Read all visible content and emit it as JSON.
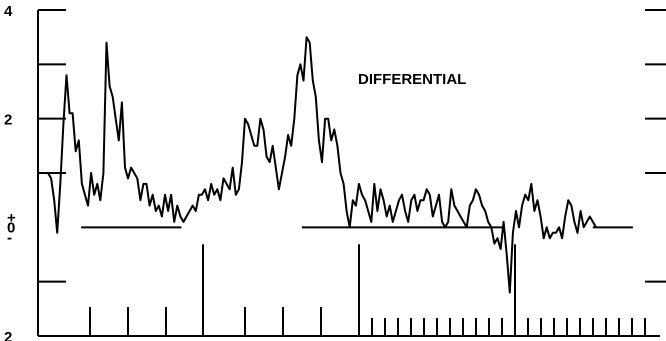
{
  "chart_data": {
    "type": "line",
    "title": "DIFFERENTIAL",
    "xlabel": "",
    "ylabel": "",
    "ylim": [
      -2,
      4
    ],
    "y_ticks": [
      {
        "value": 4,
        "label": "4"
      },
      {
        "value": 2,
        "label": "2"
      },
      {
        "value": 0,
        "label": "+\n0\n-"
      },
      {
        "value": -2,
        "label": "2"
      }
    ],
    "grid": false,
    "series": [
      {
        "values": [
          1.0,
          0.9,
          0.5,
          -0.1,
          0.8,
          1.9,
          2.8,
          2.1,
          2.1,
          1.4,
          1.6,
          0.8,
          0.6,
          0.4,
          1.0,
          0.6,
          0.8,
          0.5,
          1.0,
          3.4,
          2.6,
          2.4,
          2.0,
          1.6,
          2.3,
          1.1,
          0.9,
          1.1,
          1.0,
          0.9,
          0.5,
          0.8,
          0.8,
          0.4,
          0.6,
          0.3,
          0.4,
          0.2,
          0.6,
          0.3,
          0.6,
          0.1,
          0.4,
          0.2,
          0.1,
          0.2,
          0.3,
          0.4,
          0.3,
          0.6,
          0.6,
          0.7,
          0.5,
          0.8,
          0.6,
          0.7,
          0.5,
          0.9,
          0.8,
          0.7,
          1.1,
          0.6,
          0.7,
          1.2,
          2.0,
          1.9,
          1.7,
          1.5,
          1.5,
          2.0,
          1.8,
          1.3,
          1.2,
          1.5,
          1.1,
          0.7,
          1.0,
          1.3,
          1.7,
          1.5,
          2.0,
          2.8,
          3.0,
          2.7,
          3.5,
          3.4,
          2.7,
          2.4,
          1.6,
          1.2,
          2.0,
          2.0,
          1.6,
          1.8,
          1.5,
          1.0,
          0.8,
          0.3,
          0.0,
          0.5,
          0.4,
          0.8,
          0.6,
          0.5,
          0.3,
          0.1,
          0.8,
          0.3,
          0.7,
          0.5,
          0.2,
          0.4,
          0.1,
          0.3,
          0.5,
          0.6,
          0.3,
          0.1,
          0.5,
          0.6,
          0.3,
          0.5,
          0.5,
          0.7,
          0.6,
          0.2,
          0.4,
          0.6,
          0.1,
          0.0,
          0.1,
          0.7,
          0.4,
          0.3,
          0.2,
          0.1,
          0.0,
          0.4,
          0.5,
          0.7,
          0.6,
          0.4,
          0.3,
          0.1,
          0.0,
          -0.3,
          -0.2,
          -0.4,
          0.1,
          -0.5,
          -1.2,
          -0.1,
          0.3,
          0.0,
          0.4,
          0.6,
          0.5,
          0.8,
          0.3,
          0.5,
          0.2,
          -0.2,
          0.0,
          -0.2,
          -0.1,
          -0.1,
          0.0,
          -0.2,
          0.2,
          0.5,
          0.4,
          0.1,
          -0.1,
          0.3,
          0.0,
          0.1,
          0.2,
          0.1,
          0.0
        ]
      }
    ],
    "baseline_segments": [
      {
        "from": 4,
        "to": 14,
        "y": 0
      },
      {
        "from": 26,
        "to": 46,
        "y": 0
      },
      {
        "from": 55,
        "to": 59,
        "y": 0
      }
    ],
    "long_marks": [
      4,
      8,
      12,
      16,
      16.5,
      20,
      24,
      28,
      36,
      40,
      44,
      48,
      49
    ],
    "short_marks": [
      1,
      2,
      3,
      5,
      6,
      7,
      9,
      10,
      11,
      13,
      14,
      15,
      17,
      18,
      19,
      21,
      22,
      23,
      25,
      26,
      27,
      29,
      30,
      31,
      32,
      33,
      34,
      35,
      37,
      38,
      39,
      41,
      42,
      43,
      45,
      46,
      47,
      49,
      50,
      51,
      52,
      53,
      54,
      55,
      56,
      57,
      58,
      59,
      60,
      61,
      62,
      63,
      64
    ]
  }
}
